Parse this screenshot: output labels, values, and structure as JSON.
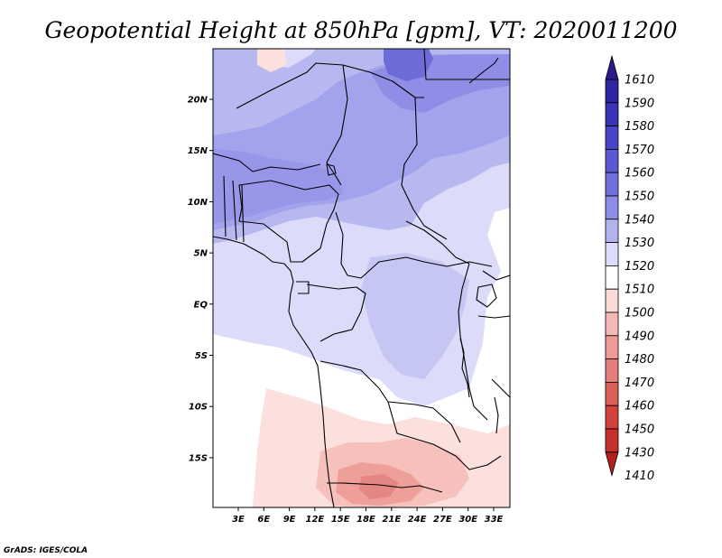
{
  "map": {
    "title": "Geopotential Height at 850hPa [gpm], VT: 2020011200",
    "variable": "Geopotential Height",
    "level": "850hPa",
    "units": "gpm",
    "valid_time": "2020011200",
    "x_ticks": [
      "3E",
      "6E",
      "9E",
      "12E",
      "15E",
      "18E",
      "21E",
      "24E",
      "27E",
      "30E",
      "33E"
    ],
    "y_ticks": [
      "20N",
      "15N",
      "10N",
      "5N",
      "EQ",
      "5S",
      "10S",
      "15S"
    ],
    "footer": "GrADS: IGES/COLA"
  },
  "colorbar": {
    "labels": [
      "1610",
      "1590",
      "1580",
      "1570",
      "1560",
      "1550",
      "1540",
      "1530",
      "1520",
      "1510",
      "1500",
      "1490",
      "1480",
      "1470",
      "1460",
      "1450",
      "1430",
      "1410"
    ],
    "colors": [
      "#2a1a8a",
      "#2f25a3",
      "#3a33b8",
      "#4a45c8",
      "#5a58d4",
      "#7070dc",
      "#8d8ce6",
      "#b2b2ef",
      "#dcdcfa",
      "#ffffff",
      "#fbdad8",
      "#f6b8b4",
      "#ee9a95",
      "#e57d78",
      "#dc5e59",
      "#d4403b",
      "#c5302b",
      "#b0201c"
    ]
  },
  "colors": {
    "c1530": "#b8b8f0",
    "c1520": "#dcdcfa",
    "c1540": "#a3a2ec",
    "c1550": "#8a88e4",
    "c1560": "#6e6cd8",
    "c1510": "#ffffff",
    "c1500": "#fce0de",
    "c1490": "#f6c1bd",
    "c1480": "#ee9f9a",
    "c1470": "#e48682"
  }
}
